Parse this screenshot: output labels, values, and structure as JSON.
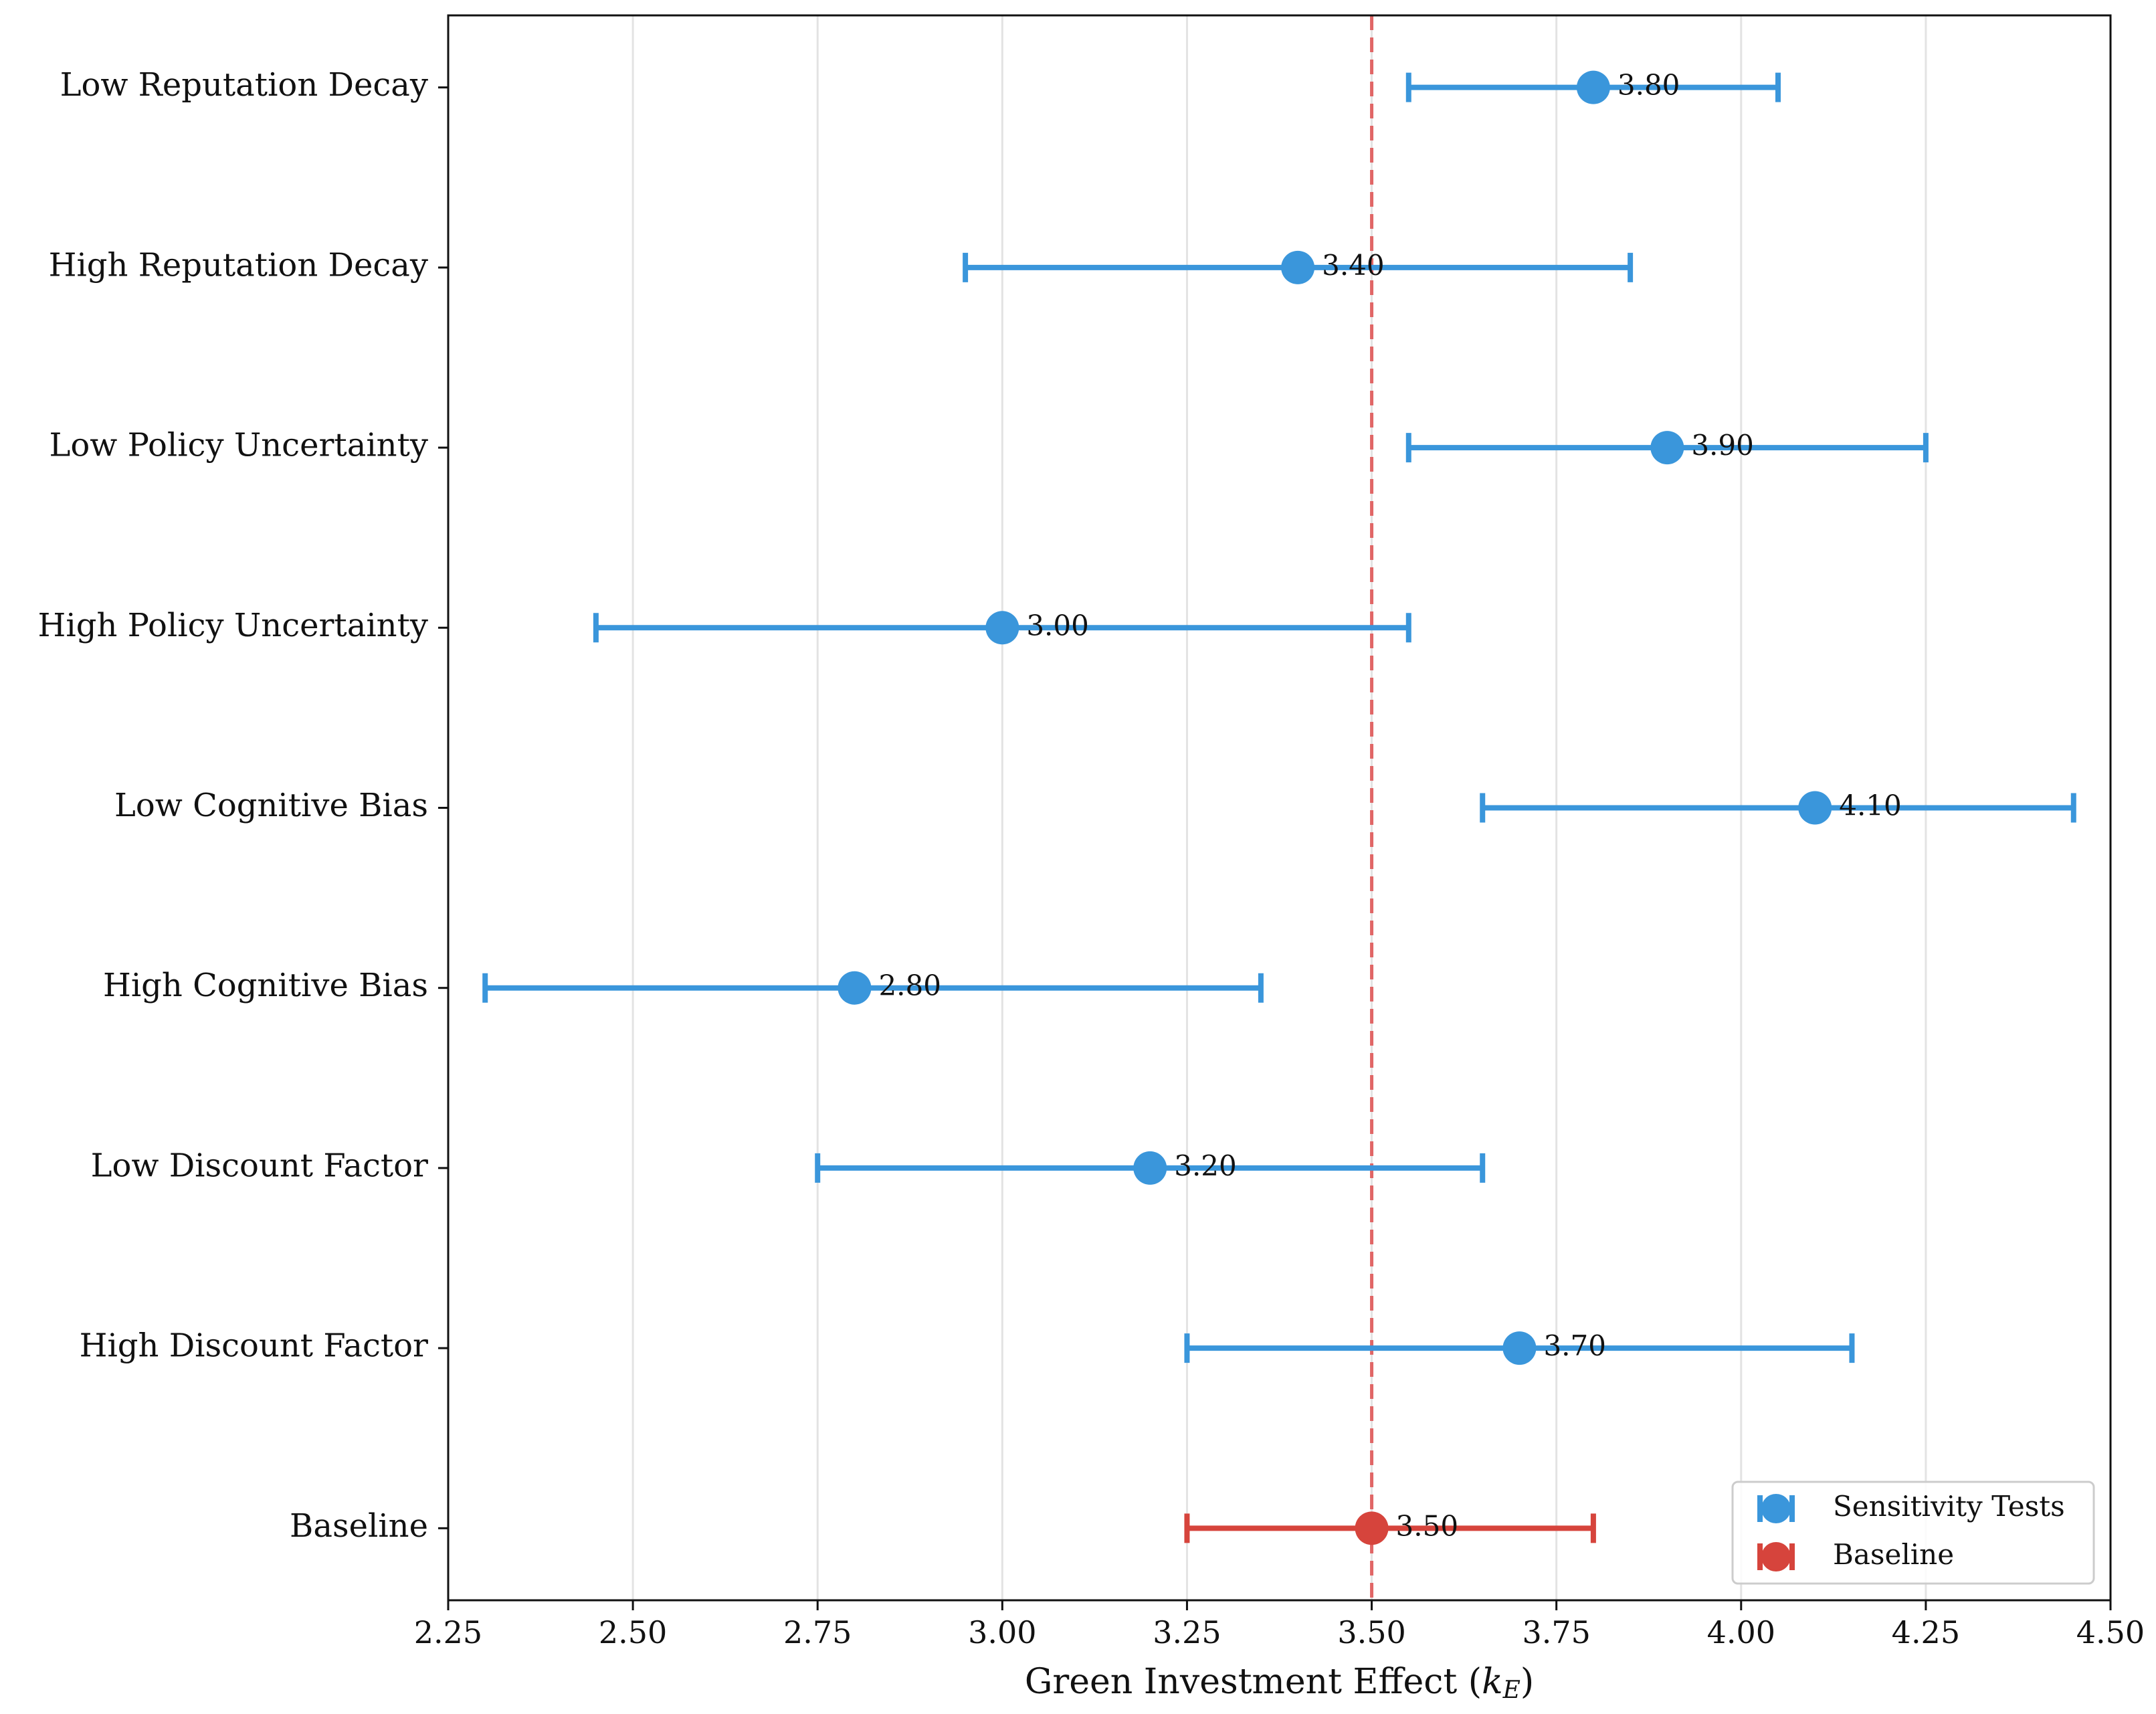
{
  "chart_data": {
    "type": "errorbar",
    "orientation": "horizontal",
    "categories": [
      "Low Reputation Decay",
      "High Reputation Decay",
      "Low Policy Uncertainty",
      "High Policy Uncertainty",
      "Low Cognitive Bias",
      "High Cognitive Bias",
      "Low Discount Factor",
      "High Discount Factor",
      "Baseline"
    ],
    "series": [
      {
        "name": "Sensitivity Tests",
        "color": "#3a96db",
        "values": [
          3.8,
          3.4,
          3.9,
          3.0,
          4.1,
          2.8,
          3.2,
          3.7,
          null
        ],
        "value_labels": [
          "3.80",
          "3.40",
          "3.90",
          "3.00",
          "4.10",
          "2.80",
          "3.20",
          "3.70",
          null
        ],
        "error_minus": [
          0.25,
          0.45,
          0.35,
          0.55,
          0.45,
          0.5,
          0.45,
          0.45,
          null
        ],
        "error_plus": [
          0.25,
          0.45,
          0.35,
          0.55,
          0.35,
          0.55,
          0.45,
          0.45,
          null
        ]
      },
      {
        "name": "Baseline",
        "color": "#d6443c",
        "values": [
          null,
          null,
          null,
          null,
          null,
          null,
          null,
          null,
          3.5
        ],
        "value_labels": [
          null,
          null,
          null,
          null,
          null,
          null,
          null,
          null,
          "3.50"
        ],
        "error_minus": [
          null,
          null,
          null,
          null,
          null,
          null,
          null,
          null,
          0.25
        ],
        "error_plus": [
          null,
          null,
          null,
          null,
          null,
          null,
          null,
          null,
          0.3
        ]
      }
    ],
    "reference_line": {
      "value": 3.5,
      "color": "#e06666",
      "style": "dashed"
    },
    "xlabel": [
      "Green Investment Effect (",
      "k",
      "E",
      ")"
    ],
    "xlim": [
      2.25,
      4.5
    ],
    "xticks": [
      2.25,
      {
        "value": 2.5,
        "label": "2.50"
      },
      2.75,
      {
        "value": 3.0,
        "label": "3.00"
      },
      3.25,
      {
        "value": 3.5,
        "label": "3.50"
      },
      3.75,
      {
        "value": 4.0,
        "label": "4.00"
      },
      4.25,
      {
        "value": 4.5,
        "label": "4.50"
      }
    ],
    "grid": true,
    "legend": "lower right"
  }
}
